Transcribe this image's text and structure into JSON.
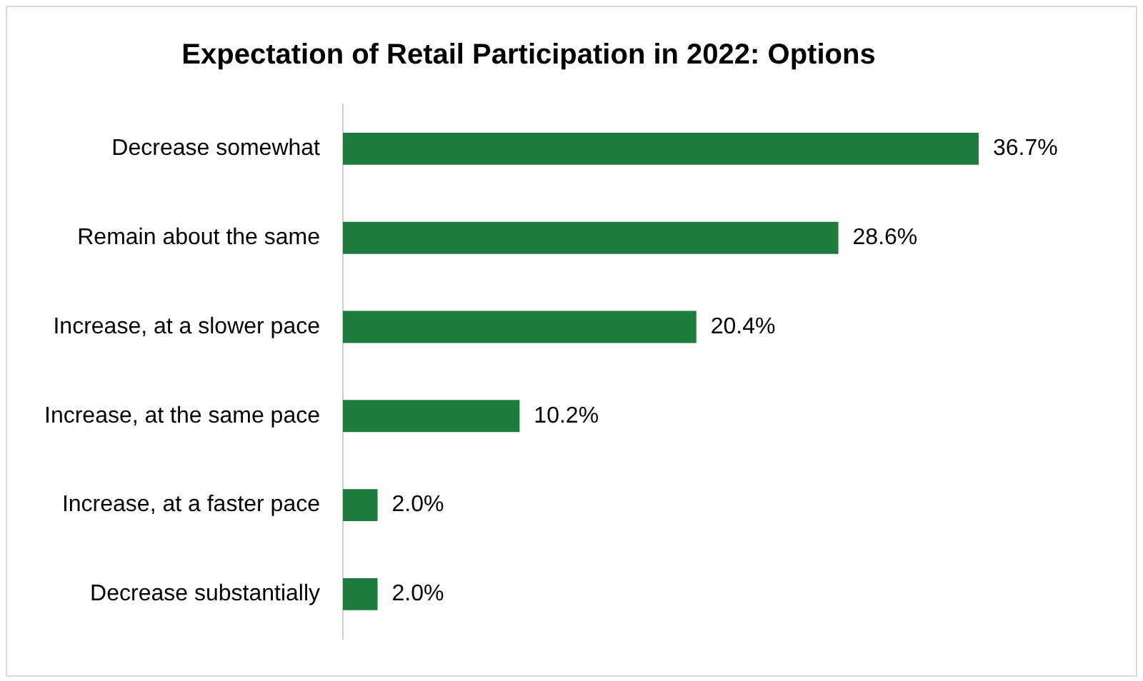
{
  "chart_data": {
    "type": "bar",
    "orientation": "horizontal",
    "title": "Expectation of Retail Participation in 2022: Options",
    "categories": [
      "Decrease somewhat",
      "Remain about the same",
      "Increase, at a slower pace",
      "Increase, at the same pace",
      "Increase, at a faster pace",
      "Decrease substantially"
    ],
    "values": [
      36.7,
      28.6,
      20.4,
      10.2,
      2.0,
      2.0
    ],
    "value_labels": [
      "36.7%",
      "28.6%",
      "20.4%",
      "10.2%",
      "2.0%",
      "2.0%"
    ],
    "color": "#1e7b3e",
    "tick_labels": "y",
    "grid": false,
    "legend": false
  }
}
